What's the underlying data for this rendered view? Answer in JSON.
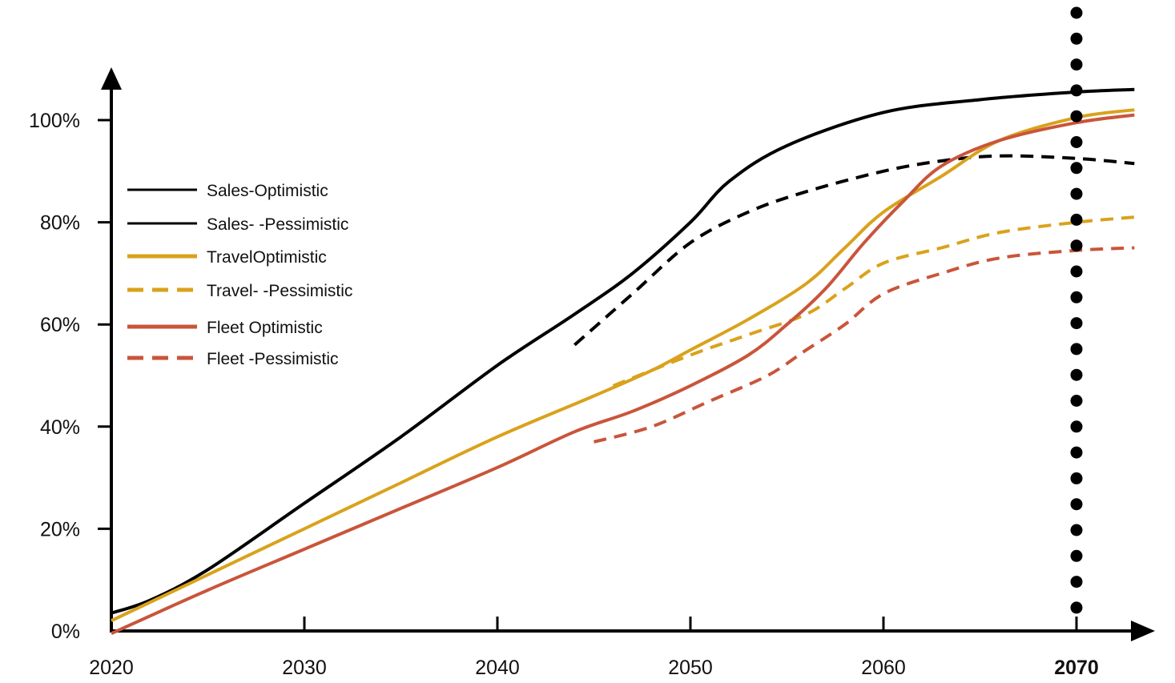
{
  "chart_data": {
    "type": "line",
    "title": "",
    "xlabel": "",
    "ylabel": "",
    "xlim": [
      2020,
      2073
    ],
    "ylim": [
      0,
      100
    ],
    "x_ticks": [
      {
        "value": 2020,
        "label": "2020",
        "bold": false
      },
      {
        "value": 2030,
        "label": "2030",
        "bold": false
      },
      {
        "value": 2040,
        "label": "2040",
        "bold": false
      },
      {
        "value": 2050,
        "label": "2050",
        "bold": false
      },
      {
        "value": 2060,
        "label": "2060",
        "bold": false
      },
      {
        "value": 2070,
        "label": "2070",
        "bold": true
      }
    ],
    "y_ticks": [
      {
        "value": 0,
        "label": "0%"
      },
      {
        "value": 20,
        "label": "20%"
      },
      {
        "value": 40,
        "label": "40%"
      },
      {
        "value": 60,
        "label": "60%"
      },
      {
        "value": 80,
        "label": "80%"
      },
      {
        "value": 100,
        "label": "100%"
      }
    ],
    "grid": false,
    "legend_position": "left",
    "vertical_marker": {
      "x": 2070,
      "style": "dotted"
    },
    "series": [
      {
        "name": "Sales-Optimistic",
        "color": "#000000",
        "dashed": false,
        "points": [
          [
            2020,
            3.5
          ],
          [
            2022,
            6
          ],
          [
            2025,
            12
          ],
          [
            2030,
            25
          ],
          [
            2035,
            38
          ],
          [
            2040,
            52
          ],
          [
            2044,
            62
          ],
          [
            2047,
            70
          ],
          [
            2050,
            80
          ],
          [
            2052,
            88
          ],
          [
            2055,
            95
          ],
          [
            2060,
            101.5
          ],
          [
            2065,
            104
          ],
          [
            2070,
            105.5
          ],
          [
            2073,
            106
          ]
        ]
      },
      {
        "name": "Sales- -Pessimistic",
        "color": "#000000",
        "dashed": true,
        "points": [
          [
            2044,
            56
          ],
          [
            2047,
            66
          ],
          [
            2050,
            76
          ],
          [
            2053,
            82
          ],
          [
            2056,
            86
          ],
          [
            2060,
            90
          ],
          [
            2063,
            92
          ],
          [
            2066,
            93
          ],
          [
            2070,
            92.5
          ],
          [
            2073,
            91.5
          ]
        ]
      },
      {
        "name": "TravelOptimistic",
        "color": "#D9A21B",
        "dashed": false,
        "points": [
          [
            2020,
            2
          ],
          [
            2025,
            11
          ],
          [
            2030,
            20
          ],
          [
            2035,
            29
          ],
          [
            2040,
            38
          ],
          [
            2045,
            46
          ],
          [
            2048,
            51
          ],
          [
            2050,
            55
          ],
          [
            2053,
            61
          ],
          [
            2056,
            68
          ],
          [
            2058,
            75
          ],
          [
            2060,
            82
          ],
          [
            2063,
            89
          ],
          [
            2066,
            96
          ],
          [
            2070,
            100.5
          ],
          [
            2073,
            102
          ]
        ]
      },
      {
        "name": "Travel- -Pessimistic",
        "color": "#D9A21B",
        "dashed": true,
        "points": [
          [
            2046,
            48
          ],
          [
            2050,
            54
          ],
          [
            2053,
            58
          ],
          [
            2056,
            62
          ],
          [
            2058,
            67
          ],
          [
            2060,
            72
          ],
          [
            2063,
            75
          ],
          [
            2066,
            78
          ],
          [
            2070,
            80
          ],
          [
            2073,
            81
          ]
        ]
      },
      {
        "name": "Fleet Optimistic",
        "color": "#C9553A",
        "dashed": false,
        "points": [
          [
            2020,
            -0.5
          ],
          [
            2025,
            8
          ],
          [
            2030,
            16
          ],
          [
            2035,
            24
          ],
          [
            2040,
            32
          ],
          [
            2044,
            39
          ],
          [
            2047,
            43
          ],
          [
            2050,
            48
          ],
          [
            2053,
            54
          ],
          [
            2055,
            60
          ],
          [
            2057,
            67
          ],
          [
            2059,
            76
          ],
          [
            2061,
            84
          ],
          [
            2063,
            91
          ],
          [
            2066,
            96
          ],
          [
            2070,
            99.5
          ],
          [
            2073,
            101
          ]
        ]
      },
      {
        "name": "Fleet -Pessimistic",
        "color": "#C9553A",
        "dashed": true,
        "points": [
          [
            2045,
            37
          ],
          [
            2048,
            40
          ],
          [
            2051,
            45
          ],
          [
            2054,
            50
          ],
          [
            2056,
            55
          ],
          [
            2058,
            60
          ],
          [
            2060,
            66
          ],
          [
            2063,
            70
          ],
          [
            2066,
            73
          ],
          [
            2070,
            74.5
          ],
          [
            2073,
            75
          ]
        ]
      }
    ]
  }
}
